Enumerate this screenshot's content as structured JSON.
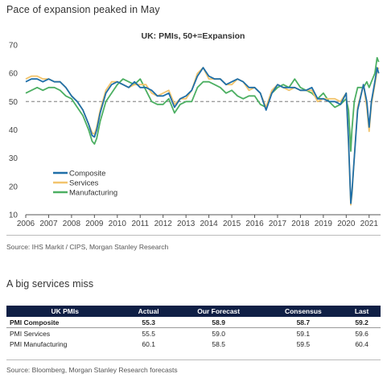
{
  "heading_chart": "Pace of expansion peaked in May",
  "source_chart": "Source: IHS Markit / CIPS, Morgan Stanley Research",
  "heading_table": "A big services miss",
  "source_table": "Source: Bloomberg, Morgan Stanley Research forecasts",
  "colors": {
    "composite": "#1f6fa8",
    "services": "#f2c46d",
    "manufacturing": "#4caf62",
    "reference": "#9e9e9e",
    "table_header": "#0f1f45"
  },
  "chart_data": {
    "type": "line",
    "title": "UK: PMIs, 50+=Expansion",
    "xlabel": "",
    "ylabel": "",
    "xlim": [
      2006,
      2021.5
    ],
    "ylim": [
      10,
      70
    ],
    "yticks": [
      10,
      20,
      30,
      40,
      50,
      60,
      70
    ],
    "xticks": [
      "2006",
      "2007",
      "2008",
      "2009",
      "2010",
      "2011",
      "2012",
      "2013",
      "2014",
      "2015",
      "2016",
      "2017",
      "2018",
      "2019",
      "2020",
      "2021"
    ],
    "reference_line": 50,
    "grid": false,
    "legend_position": "bottom-left",
    "series": [
      {
        "name": "Composite",
        "color": "#1f6fa8",
        "x": [
          2006.0,
          2006.25,
          2006.5,
          2006.75,
          2007.0,
          2007.25,
          2007.5,
          2007.75,
          2008.0,
          2008.25,
          2008.5,
          2008.75,
          2008.9,
          2009.0,
          2009.1,
          2009.25,
          2009.5,
          2009.75,
          2010.0,
          2010.25,
          2010.5,
          2010.75,
          2011.0,
          2011.25,
          2011.5,
          2011.75,
          2012.0,
          2012.25,
          2012.5,
          2012.75,
          2013.0,
          2013.25,
          2013.5,
          2013.75,
          2014.0,
          2014.25,
          2014.5,
          2014.75,
          2015.0,
          2015.25,
          2015.5,
          2015.75,
          2016.0,
          2016.25,
          2016.5,
          2016.75,
          2017.0,
          2017.25,
          2017.5,
          2017.75,
          2018.0,
          2018.25,
          2018.5,
          2018.75,
          2019.0,
          2019.25,
          2019.5,
          2019.75,
          2020.0,
          2020.1,
          2020.2,
          2020.25,
          2020.35,
          2020.5,
          2020.75,
          2020.9,
          2021.0,
          2021.1,
          2021.25,
          2021.35,
          2021.42
        ],
        "y": [
          57,
          58,
          58,
          57,
          58,
          57,
          57,
          55,
          52,
          50,
          47,
          42,
          38,
          37.5,
          40,
          46,
          53,
          56,
          57,
          56,
          55,
          57,
          55,
          55,
          54,
          52,
          52,
          53,
          48,
          51,
          52,
          54,
          59,
          62,
          59,
          58,
          58,
          56,
          57,
          58,
          57,
          55,
          55,
          53,
          47,
          53,
          56,
          55,
          55,
          55,
          54,
          54,
          55,
          51,
          51,
          50,
          50,
          49,
          53,
          36,
          14,
          18,
          30,
          47,
          56,
          50,
          41,
          50,
          57,
          62,
          60
        ]
      },
      {
        "name": "Services",
        "color": "#f2c46d",
        "x": [
          2006.0,
          2006.25,
          2006.5,
          2006.75,
          2007.0,
          2007.25,
          2007.5,
          2007.75,
          2008.0,
          2008.25,
          2008.5,
          2008.75,
          2008.9,
          2009.0,
          2009.1,
          2009.25,
          2009.5,
          2009.75,
          2010.0,
          2010.25,
          2010.5,
          2010.75,
          2011.0,
          2011.25,
          2011.5,
          2011.75,
          2012.0,
          2012.25,
          2012.5,
          2012.75,
          2013.0,
          2013.25,
          2013.5,
          2013.75,
          2014.0,
          2014.25,
          2014.5,
          2014.75,
          2015.0,
          2015.25,
          2015.5,
          2015.75,
          2016.0,
          2016.25,
          2016.5,
          2016.75,
          2017.0,
          2017.25,
          2017.5,
          2017.75,
          2018.0,
          2018.25,
          2018.5,
          2018.75,
          2019.0,
          2019.25,
          2019.5,
          2019.75,
          2020.0,
          2020.1,
          2020.2,
          2020.25,
          2020.35,
          2020.5,
          2020.75,
          2020.9,
          2021.0,
          2021.1,
          2021.25,
          2021.35,
          2021.42
        ],
        "y": [
          58,
          59,
          59,
          58,
          58,
          57,
          57,
          55,
          52,
          50,
          47,
          42,
          39,
          38.5,
          41,
          47,
          54,
          57,
          57,
          56,
          55,
          56,
          56,
          56,
          53,
          52,
          53,
          54,
          49,
          51,
          51,
          54,
          60,
          62,
          58,
          58,
          58,
          56,
          56,
          58,
          57,
          54,
          55,
          53,
          48,
          54,
          56,
          55,
          54,
          55,
          54,
          54,
          54,
          50,
          51,
          51,
          51,
          50,
          53,
          35,
          13.5,
          17,
          30,
          48,
          56,
          48,
          39.5,
          49,
          56,
          61,
          62
        ]
      },
      {
        "name": "Manufacturing",
        "color": "#4caf62",
        "x": [
          2006.0,
          2006.25,
          2006.5,
          2006.75,
          2007.0,
          2007.25,
          2007.5,
          2007.75,
          2008.0,
          2008.25,
          2008.5,
          2008.75,
          2008.9,
          2009.0,
          2009.1,
          2009.25,
          2009.5,
          2009.75,
          2010.0,
          2010.25,
          2010.5,
          2010.75,
          2011.0,
          2011.25,
          2011.5,
          2011.75,
          2012.0,
          2012.25,
          2012.5,
          2012.75,
          2013.0,
          2013.25,
          2013.5,
          2013.75,
          2014.0,
          2014.25,
          2014.5,
          2014.75,
          2015.0,
          2015.25,
          2015.5,
          2015.75,
          2016.0,
          2016.25,
          2016.5,
          2016.75,
          2017.0,
          2017.25,
          2017.5,
          2017.75,
          2018.0,
          2018.25,
          2018.5,
          2018.75,
          2019.0,
          2019.25,
          2019.5,
          2019.75,
          2020.0,
          2020.1,
          2020.2,
          2020.25,
          2020.35,
          2020.5,
          2020.75,
          2020.9,
          2021.0,
          2021.1,
          2021.25,
          2021.35,
          2021.42
        ],
        "y": [
          53,
          54,
          55,
          54,
          55,
          55,
          54,
          52,
          51,
          48,
          45,
          40,
          36,
          35,
          37,
          43,
          50,
          53,
          56,
          58,
          57,
          56,
          58,
          54,
          50,
          49,
          49,
          51,
          46,
          49,
          50,
          50,
          55,
          57,
          57,
          56,
          55,
          53,
          54,
          52,
          51,
          52,
          52,
          49,
          48,
          53,
          55,
          56,
          55,
          58,
          55,
          54,
          53,
          51,
          53,
          50,
          48,
          49,
          51,
          47,
          32.5,
          40,
          50,
          55,
          55,
          57,
          55,
          57,
          60,
          65.5,
          64
        ]
      }
    ]
  },
  "table": {
    "headers": [
      "UK PMIs",
      "Actual",
      "Our Forecast",
      "Consensus",
      "Last"
    ],
    "rows": [
      {
        "label": "PMI Composite",
        "actual": "55.3",
        "forecast": "58.9",
        "consensus": "58.7",
        "last": "59.2"
      },
      {
        "label": "PMI Services",
        "actual": "55.5",
        "forecast": "59.0",
        "consensus": "59.1",
        "last": "59.6"
      },
      {
        "label": "PMI Manufacturing",
        "actual": "60.1",
        "forecast": "58.5",
        "consensus": "59.5",
        "last": "60.4"
      }
    ]
  }
}
